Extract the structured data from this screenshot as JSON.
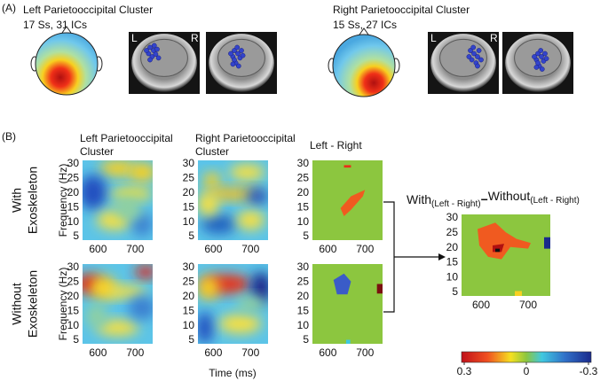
{
  "panel_a": {
    "label": "(A)",
    "left": {
      "title": "Left Parietooccipital Cluster",
      "subtitle": "17 Ss, 31 ICs"
    },
    "right": {
      "title": "Right Parietooccipital Cluster",
      "subtitle": "15 Ss, 27 ICs"
    },
    "side_left": "L",
    "side_right": "R"
  },
  "panel_b": {
    "label": "(B)",
    "column_titles": [
      [
        "Left Parietooccipital",
        "Cluster"
      ],
      [
        "Right Parietooccipital",
        "Cluster"
      ],
      [
        "Left - Right"
      ]
    ],
    "row_labels": [
      [
        "With",
        "Exoskeleton"
      ],
      [
        "Without",
        "Exoskeleton"
      ]
    ],
    "y_label": "Frequency (Hz)",
    "x_label": "Time (ms)",
    "yticks": [
      5,
      10,
      15,
      20,
      25,
      30
    ],
    "xticks": [
      600,
      700
    ],
    "difference_title": {
      "main_left": "With",
      "sub_left": "(Left - Right)",
      "operator": "−",
      "main_right": "Without",
      "sub_right": "(Left - Right)"
    },
    "colorbar_ticks": [
      {
        "value": 0.3,
        "label": "0.3"
      },
      {
        "value": 0,
        "label": "0"
      },
      {
        "value": -0.3,
        "label": "-0.3"
      }
    ]
  }
}
